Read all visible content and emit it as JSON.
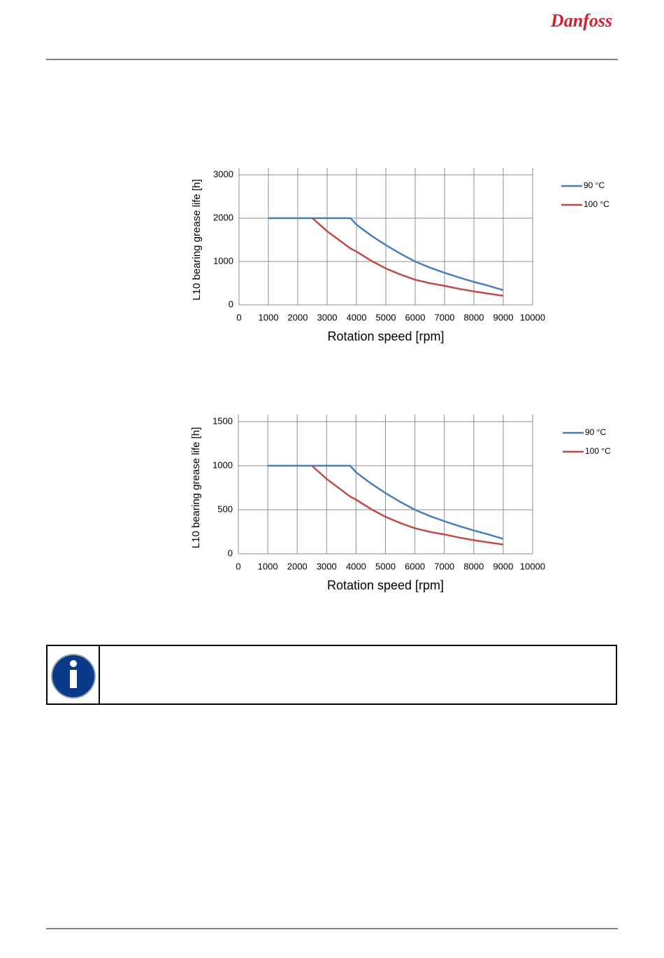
{
  "logo": "Danfoss",
  "chart_data": [
    {
      "type": "line",
      "x_label": "Rotation speed [rpm]",
      "y_label": "L10 bearing grease life [h]",
      "x": [
        1000,
        2000,
        2500,
        3000,
        3800,
        4000,
        4500,
        5000,
        5500,
        6000,
        6500,
        7000,
        7500,
        8000,
        8500,
        9000
      ],
      "series": [
        {
          "name": "90 °C",
          "color": "#4a7ebb",
          "values": [
            2000,
            2000,
            2000,
            2000,
            2000,
            1850,
            1600,
            1380,
            1180,
            1000,
            860,
            740,
            630,
            530,
            440,
            340
          ]
        },
        {
          "name": "100 °C",
          "color": "#be4b48",
          "values": [
            null,
            null,
            2000,
            1700,
            1300,
            1230,
            1020,
            840,
            700,
            580,
            500,
            440,
            370,
            310,
            260,
            210
          ]
        }
      ],
      "xlim": [
        0,
        10000
      ],
      "xticks": [
        0,
        1000,
        2000,
        3000,
        4000,
        5000,
        6000,
        7000,
        8000,
        9000,
        10000
      ],
      "ylim": [
        0,
        3000
      ],
      "yticks": [
        0,
        1000,
        2000,
        3000
      ],
      "grid": true,
      "legend": "right"
    },
    {
      "type": "line",
      "x_label": "Rotation speed [rpm]",
      "y_label": "L10 bearing grease life [h]",
      "x": [
        1000,
        2000,
        2500,
        3000,
        3800,
        4000,
        4500,
        5000,
        5500,
        6000,
        6500,
        7000,
        7500,
        8000,
        8500,
        9000
      ],
      "series": [
        {
          "name": "90 °C",
          "color": "#4a7ebb",
          "values": [
            1000,
            1000,
            1000,
            1000,
            1000,
            925,
            800,
            690,
            590,
            500,
            430,
            370,
            315,
            265,
            220,
            170
          ]
        },
        {
          "name": "100 °C",
          "color": "#be4b48",
          "values": [
            null,
            null,
            1000,
            850,
            650,
            615,
            510,
            420,
            350,
            290,
            250,
            220,
            185,
            155,
            130,
            105
          ]
        }
      ],
      "xlim": [
        0,
        10000
      ],
      "xticks": [
        0,
        1000,
        2000,
        3000,
        4000,
        5000,
        6000,
        7000,
        8000,
        9000,
        10000
      ],
      "ylim": [
        0,
        1500
      ],
      "yticks": [
        0,
        500,
        1000,
        1500
      ],
      "grid": true,
      "legend": "right"
    }
  ]
}
